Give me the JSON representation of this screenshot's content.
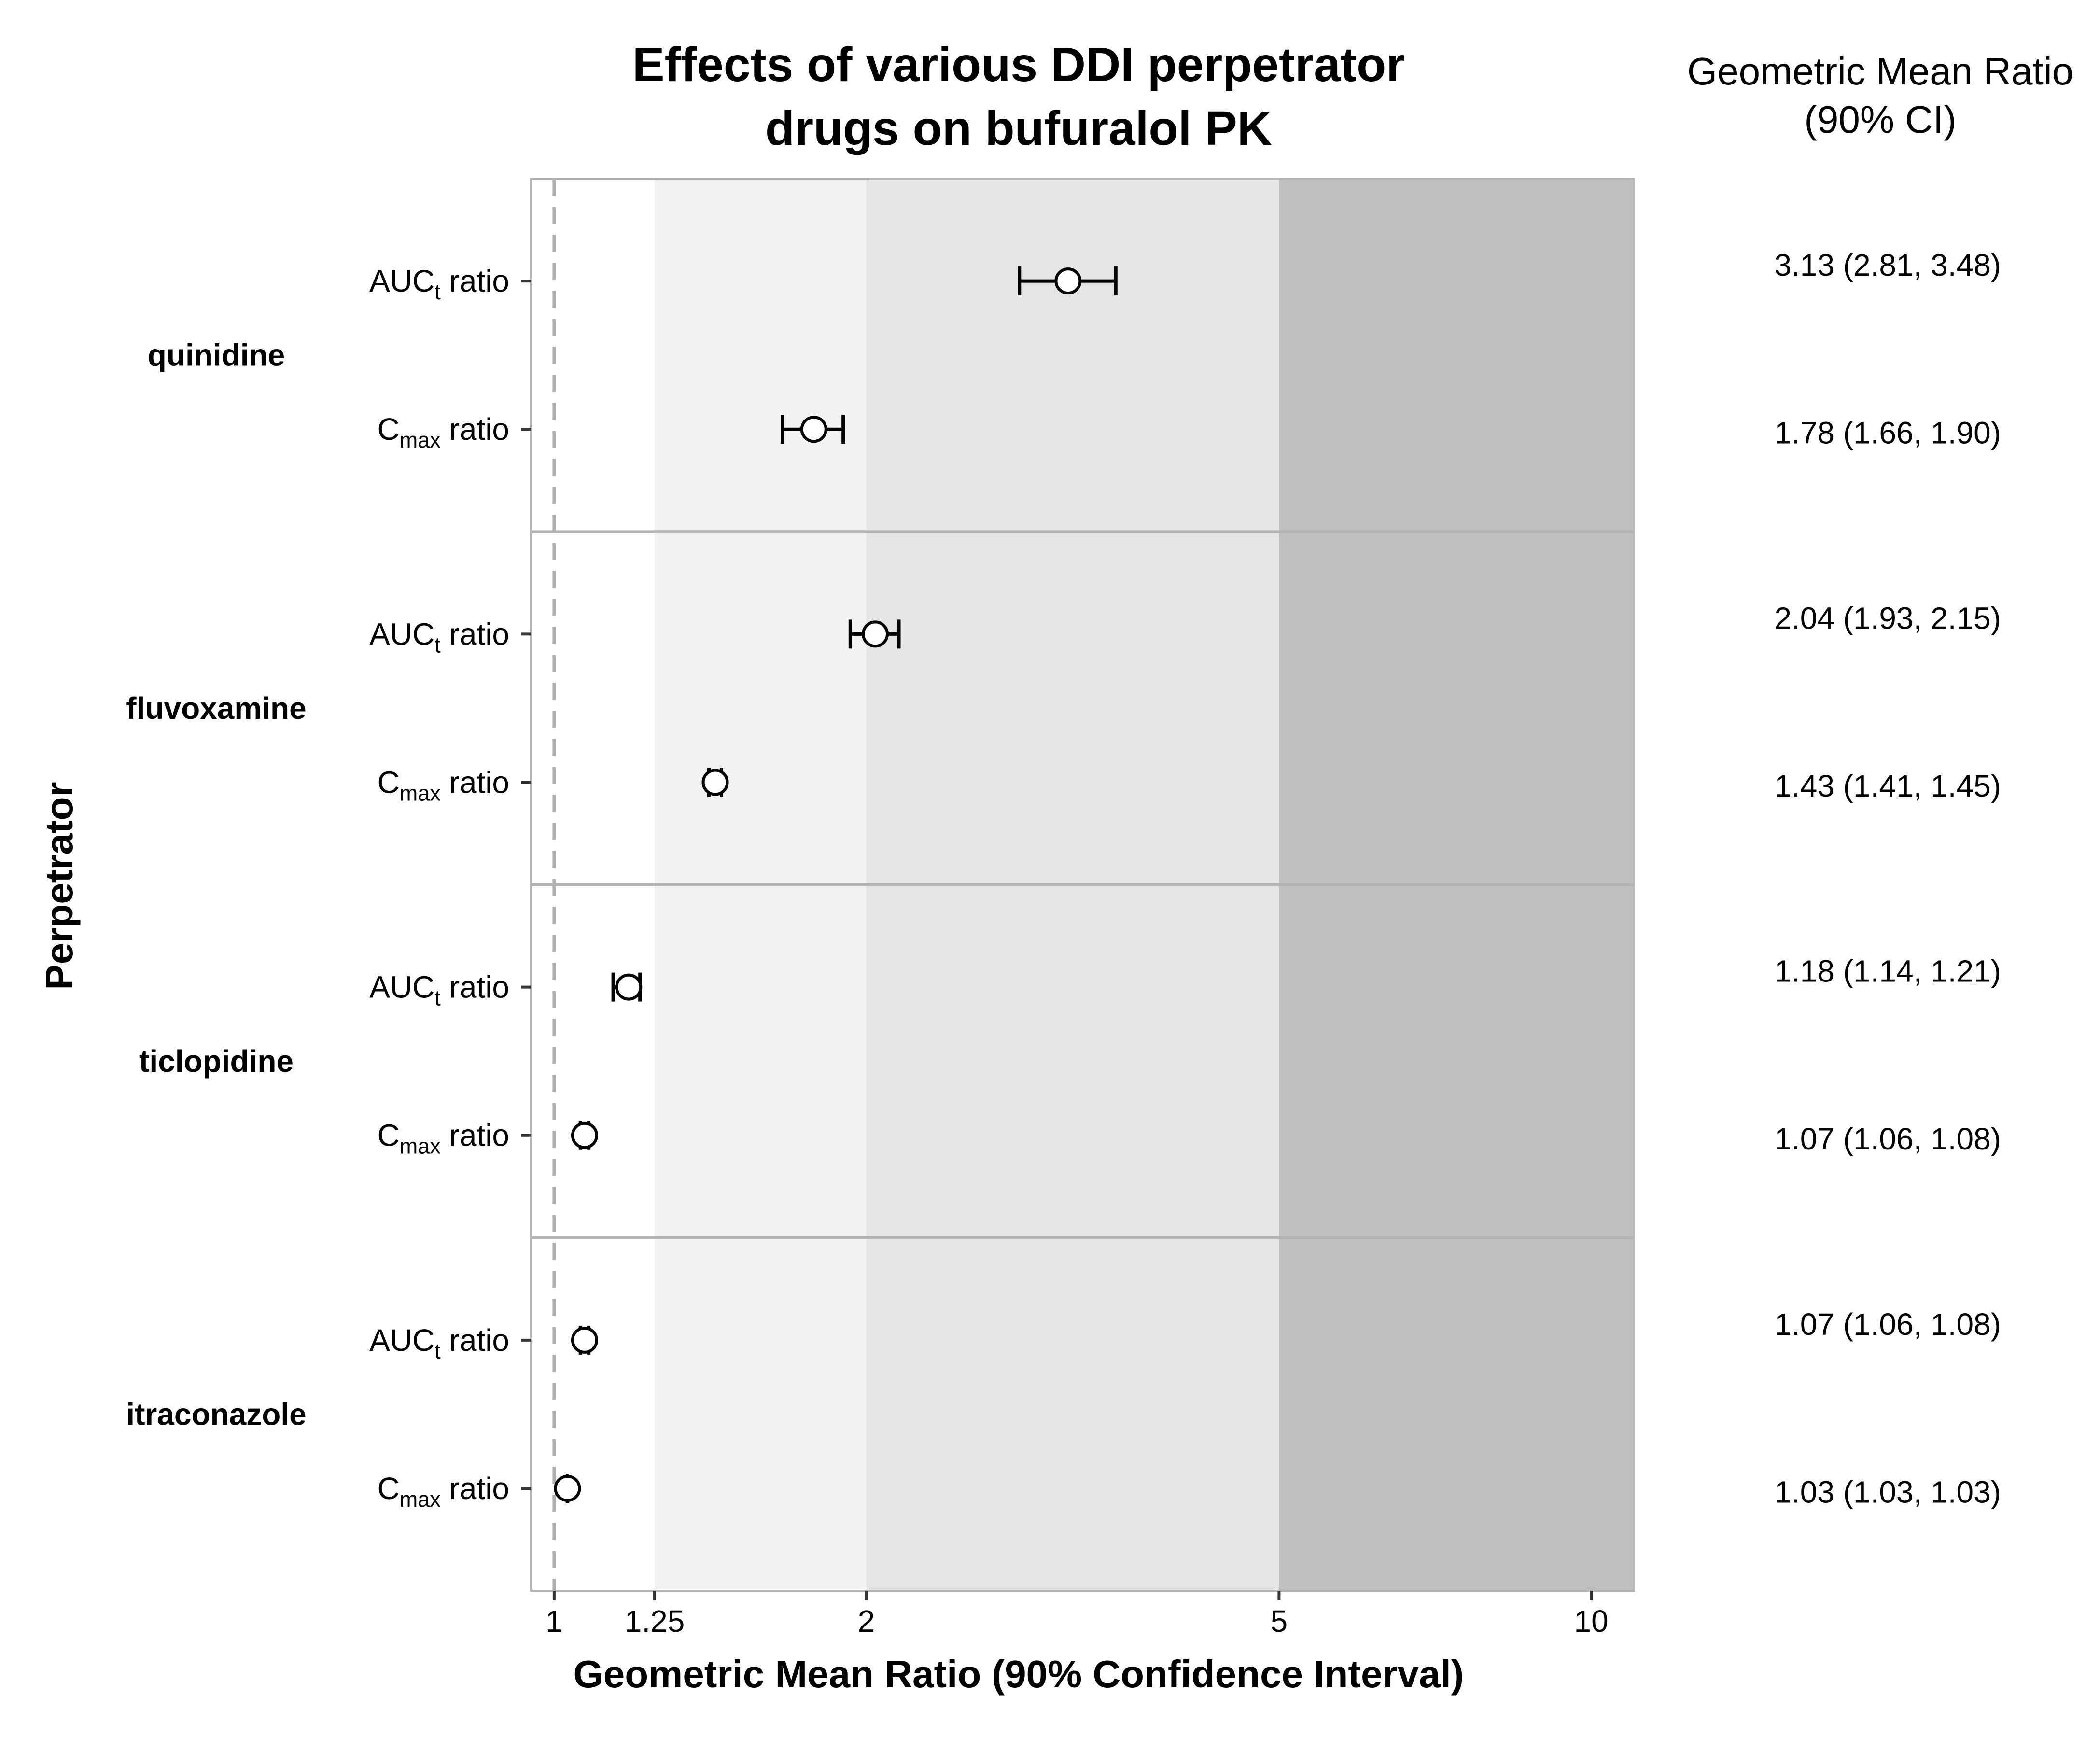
{
  "chart_data": {
    "type": "forest",
    "title": [
      "Effects of various DDI perpetrator",
      "drugs on bufuralol PK"
    ],
    "xlabel": "Geometric Mean Ratio (90% Confidence Interval)",
    "ylabel": "Perpetrator",
    "right_header": [
      "Geometric Mean Ratio",
      "(90% CI)"
    ],
    "x_scale": "log",
    "xlim": [
      0.95,
      11
    ],
    "x_ticks": [
      1,
      1.25,
      2,
      5,
      10
    ],
    "x_tick_labels": [
      "1",
      "1.25",
      "2",
      "5",
      "10"
    ],
    "reference_line": 1,
    "bands": [
      {
        "from": 0.95,
        "to": 1.25,
        "color": "#ffffff"
      },
      {
        "from": 1.25,
        "to": 2,
        "color": "#f2f2f2"
      },
      {
        "from": 2,
        "to": 5,
        "color": "#e5e5e5"
      },
      {
        "from": 5,
        "to": 11,
        "color": "#bfbfbf"
      }
    ],
    "groups": [
      {
        "name": "quinidine",
        "rows": [
          {
            "label_main": "AUC",
            "label_sub": "t",
            "label_tail": " ratio",
            "gmr": 3.13,
            "lower": 2.81,
            "upper": 3.48,
            "ci_text": "3.13 (2.81, 3.48)"
          },
          {
            "label_main": "C",
            "label_sub": "max",
            "label_tail": " ratio",
            "gmr": 1.78,
            "lower": 1.66,
            "upper": 1.9,
            "ci_text": "1.78 (1.66, 1.90)"
          }
        ]
      },
      {
        "name": "fluvoxamine",
        "rows": [
          {
            "label_main": "AUC",
            "label_sub": "t",
            "label_tail": " ratio",
            "gmr": 2.04,
            "lower": 1.93,
            "upper": 2.15,
            "ci_text": "2.04 (1.93, 2.15)"
          },
          {
            "label_main": "C",
            "label_sub": "max",
            "label_tail": " ratio",
            "gmr": 1.43,
            "lower": 1.41,
            "upper": 1.45,
            "ci_text": "1.43 (1.41, 1.45)"
          }
        ]
      },
      {
        "name": "ticlopidine",
        "rows": [
          {
            "label_main": "AUC",
            "label_sub": "t",
            "label_tail": " ratio",
            "gmr": 1.18,
            "lower": 1.14,
            "upper": 1.21,
            "ci_text": "1.18 (1.14, 1.21)"
          },
          {
            "label_main": "C",
            "label_sub": "max",
            "label_tail": " ratio",
            "gmr": 1.07,
            "lower": 1.06,
            "upper": 1.08,
            "ci_text": "1.07 (1.06, 1.08)"
          }
        ]
      },
      {
        "name": "itraconazole",
        "rows": [
          {
            "label_main": "AUC",
            "label_sub": "t",
            "label_tail": " ratio",
            "gmr": 1.07,
            "lower": 1.06,
            "upper": 1.08,
            "ci_text": "1.07 (1.06, 1.08)"
          },
          {
            "label_main": "C",
            "label_sub": "max",
            "label_tail": " ratio",
            "gmr": 1.03,
            "lower": 1.03,
            "upper": 1.03,
            "ci_text": "1.03 (1.03, 1.03)"
          }
        ]
      }
    ]
  }
}
